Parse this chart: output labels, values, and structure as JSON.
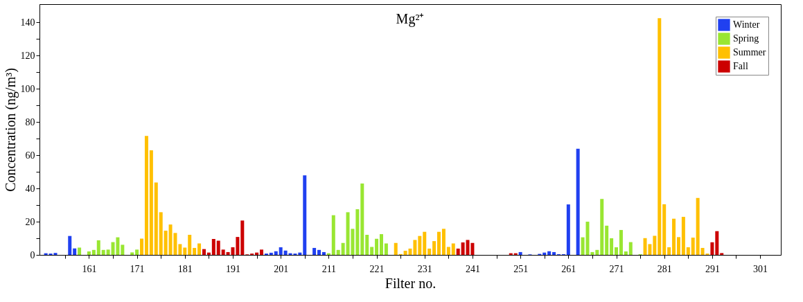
{
  "chart_data": {
    "type": "bar",
    "title": "Mg²⁺",
    "xlabel": "Filter no.",
    "ylabel": "Concentration (ng/m³)",
    "series": [
      {
        "name": "Winter",
        "color": "#2040f0",
        "x": [
          152,
          153,
          154,
          157,
          158,
          198,
          199,
          200,
          201,
          202,
          203,
          204,
          205,
          206,
          208,
          209,
          210,
          251,
          253,
          255,
          256,
          257,
          258,
          259,
          260,
          261,
          263
        ],
        "values": [
          1,
          0.8,
          1.2,
          11.4,
          3.9,
          0.8,
          1.3,
          2.2,
          4.6,
          2.6,
          1.0,
          0.8,
          1.4,
          47.9,
          4.2,
          3.0,
          1.7,
          1.7,
          0.3,
          0.6,
          1.4,
          2.2,
          1.7,
          0.4,
          0.4,
          30.4,
          63.9
        ]
      },
      {
        "name": "Spring",
        "color": "#99e632",
        "x": [
          159,
          161,
          162,
          163,
          164,
          165,
          166,
          167,
          168,
          170,
          171,
          211,
          212,
          213,
          214,
          215,
          216,
          217,
          218,
          219,
          220,
          221,
          222,
          223,
          264,
          265,
          266,
          267,
          268,
          269,
          270,
          271,
          272,
          273,
          274,
          276
        ],
        "values": [
          4.4,
          2.1,
          3.0,
          8.8,
          3.0,
          3.2,
          7.7,
          10.6,
          6.1,
          1.5,
          3.2,
          1.0,
          23.9,
          3.0,
          7.2,
          25.7,
          15.7,
          27.5,
          43.0,
          12.1,
          4.8,
          9.7,
          12.5,
          6.9,
          10.6,
          20.0,
          1.7,
          3.0,
          33.7,
          17.6,
          10.0,
          4.6,
          15.0,
          2.1,
          7.7,
          0.4
        ]
      },
      {
        "name": "Summer",
        "color": "#ffc000",
        "x": [
          172,
          173,
          174,
          175,
          176,
          177,
          178,
          179,
          180,
          181,
          182,
          183,
          184,
          225,
          226,
          227,
          228,
          229,
          230,
          231,
          232,
          233,
          234,
          235,
          236,
          237,
          277,
          278,
          279,
          280,
          281,
          282,
          283,
          284,
          285,
          286,
          287,
          288,
          289,
          290
        ],
        "values": [
          9.8,
          71.6,
          63.0,
          43.6,
          25.7,
          14.6,
          18.3,
          13.2,
          6.5,
          4.4,
          12.1,
          4.2,
          6.9,
          7.2,
          0.5,
          2.5,
          3.8,
          9.0,
          11.4,
          13.9,
          3.8,
          8.3,
          13.9,
          15.7,
          4.8,
          6.9,
          10.1,
          6.5,
          11.5,
          142.6,
          30.5,
          4.6,
          21.8,
          10.7,
          22.9,
          4.6,
          10.4,
          34.3,
          4.2,
          0.8
        ]
      },
      {
        "name": "Fall",
        "color": "#cc0000",
        "x": [
          185,
          186,
          187,
          188,
          189,
          190,
          191,
          192,
          193,
          194,
          195,
          196,
          197,
          238,
          239,
          240,
          241,
          249,
          250,
          291,
          292,
          293
        ],
        "values": [
          3.5,
          1.4,
          9.6,
          8.6,
          3.2,
          1.7,
          4.6,
          10.8,
          20.7,
          0.3,
          0.8,
          1.4,
          3.2,
          3.8,
          7.5,
          9.0,
          7.2,
          1.0,
          1.0,
          7.6,
          14.3,
          1.1
        ]
      }
    ],
    "xlim": [
      151.4,
      304.6
    ],
    "xticks": [
      {
        "value": 156,
        "label": null
      },
      161,
      {
        "value": 166,
        "label": null
      },
      171,
      {
        "value": 176,
        "label": null
      },
      181,
      {
        "value": 186,
        "label": null
      },
      191,
      {
        "value": 196,
        "label": null
      },
      201,
      {
        "value": 206,
        "label": null
      },
      211,
      {
        "value": 216,
        "label": null
      },
      221,
      {
        "value": 226,
        "label": null
      },
      231,
      {
        "value": 236,
        "label": null
      },
      241,
      {
        "value": 246,
        "label": null
      },
      251,
      {
        "value": 256,
        "label": null
      },
      261,
      {
        "value": 266,
        "label": null
      },
      271,
      {
        "value": 276,
        "label": null
      },
      281,
      {
        "value": 286,
        "label": null
      },
      291,
      {
        "value": 296,
        "label": null
      },
      301
    ],
    "ylim": [
      0,
      151
    ],
    "yticks": [
      0,
      {
        "value": 10,
        "label": null
      },
      20,
      {
        "value": 30,
        "label": null
      },
      40,
      {
        "value": 50,
        "label": null
      },
      60,
      {
        "value": 70,
        "label": null
      },
      80,
      {
        "value": 90,
        "label": null
      },
      100,
      {
        "value": 110,
        "label": null
      },
      120,
      {
        "value": 130,
        "label": null
      },
      140
    ],
    "legend": "top right",
    "grid": false
  }
}
